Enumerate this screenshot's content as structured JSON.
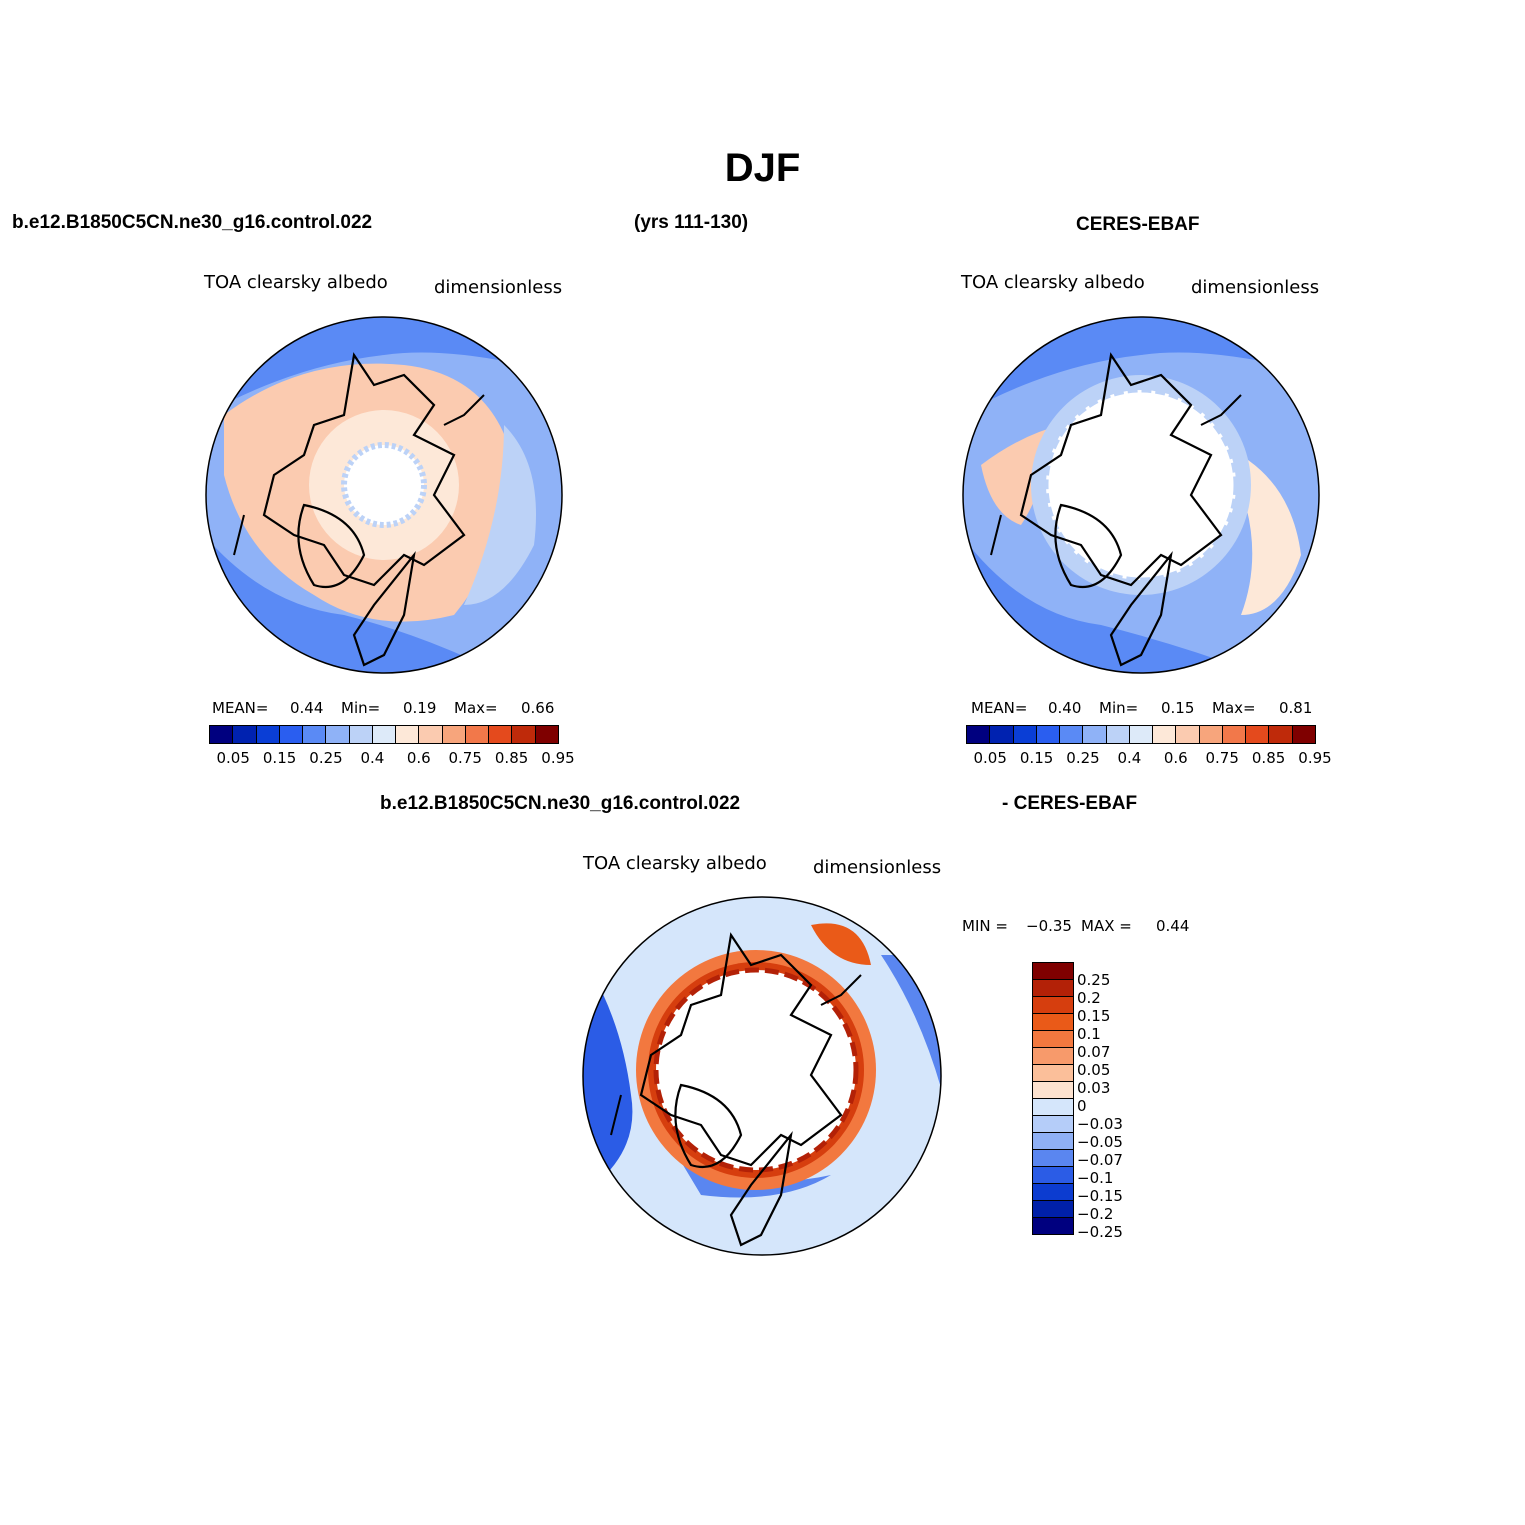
{
  "title": "DJF",
  "header_top": {
    "left": "b.e12.B1850C5CN.ne30_g16.control.022",
    "center": "(yrs 111-130)",
    "right": "CERES-EBAF"
  },
  "header_bottom": {
    "left": "b.e12.B1850C5CN.ne30_g16.control.022",
    "right": "- CERES-EBAF"
  },
  "panels": {
    "model": {
      "variable": "TOA clearsky albedo",
      "units": "dimensionless",
      "mean_label": "MEAN=",
      "mean": "0.44",
      "min_label": "Min=",
      "min": "0.19",
      "max_label": "Max=",
      "max": "0.66"
    },
    "obs": {
      "variable": "TOA clearsky albedo",
      "units": "dimensionless",
      "mean_label": "MEAN=",
      "mean": "0.40",
      "min_label": "Min=",
      "min": "0.15",
      "max_label": "Max=",
      "max": "0.81"
    },
    "diff": {
      "variable": "TOA clearsky albedo",
      "units": "dimensionless",
      "min_label": "MIN =",
      "min": "−0.35",
      "max_label": "MAX =",
      "max": "0.44"
    }
  },
  "colorbar_abs": {
    "tick_labels": [
      "0.05",
      "0.15",
      "0.25",
      "0.4",
      "0.6",
      "0.75",
      "0.85",
      "0.95"
    ],
    "colors": [
      "#00007f",
      "#0022b0",
      "#0a3ed6",
      "#2a5ef0",
      "#5a8af5",
      "#8fb2f7",
      "#bcd2f7",
      "#ddeaf9",
      "#fde8d8",
      "#fbcbb0",
      "#f7a57c",
      "#f2784a",
      "#e44a1d",
      "#bf2a0a",
      "#7f0000"
    ]
  },
  "colorbar_diff": {
    "tick_labels": [
      "0.25",
      "0.2",
      "0.15",
      "0.1",
      "0.07",
      "0.05",
      "0.03",
      "0",
      "−0.03",
      "−0.05",
      "−0.07",
      "−0.1",
      "−0.15",
      "−0.2",
      "−0.25"
    ],
    "colors": [
      "#7f0000",
      "#b32107",
      "#d63e0e",
      "#ea5a18",
      "#f2783f",
      "#f79a6b",
      "#fbbf9a",
      "#fde2cf",
      "#d5e6fb",
      "#b5cdf9",
      "#8fb0f5",
      "#5a86f0",
      "#2b5ce6",
      "#0c3cd0",
      "#0020a8",
      "#00007f"
    ]
  },
  "maps": {
    "pole": "North Polar Stereographic",
    "boundary": "circle"
  }
}
